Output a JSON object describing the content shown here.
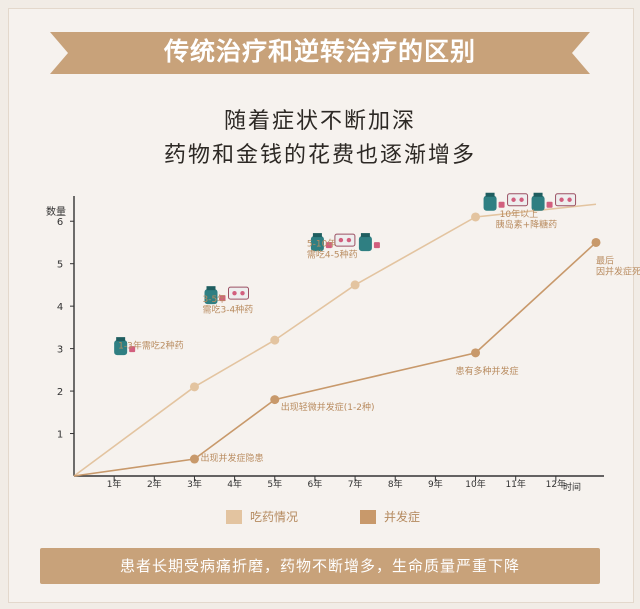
{
  "title": "传统治疗和逆转治疗的区别",
  "subtitle_lines": [
    "随着症状不断加深",
    "药物和金钱的花费也逐渐增多"
  ],
  "footer": "患者长期受病痛折磨，药物不断增多，生命质量严重下降",
  "colors": {
    "accent": "#c8a27a",
    "medication_line": "#e3c4a0",
    "complication_line": "#c8996b",
    "label_text": "#b98c60",
    "axis": "#333333"
  },
  "chart_data": {
    "type": "line",
    "title": "",
    "xlabel": "时间",
    "ylabel": "数量",
    "categories": [
      "1年",
      "2年",
      "3年",
      "4年",
      "5年",
      "6年",
      "7年",
      "8年",
      "9年",
      "10年",
      "11年",
      "12年"
    ],
    "yticks": [
      "1",
      "2",
      "3",
      "4",
      "5",
      "6"
    ],
    "xlim": [
      0,
      13
    ],
    "ylim": [
      0,
      6.5
    ],
    "grid": false,
    "legend_position": "bottom",
    "series": [
      {
        "name": "吃药情况",
        "x": [
          0,
          3,
          5,
          7,
          10,
          13
        ],
        "y": [
          0,
          2.1,
          3.2,
          4.5,
          6.1,
          6.4
        ]
      },
      {
        "name": "并发症",
        "x": [
          0,
          3,
          5,
          10,
          13
        ],
        "y": [
          0,
          0.4,
          1.8,
          2.9,
          5.5
        ]
      }
    ],
    "annotations": [
      {
        "text": "1-3年需吃2种药",
        "x": 1.1,
        "y": 3.0,
        "series": 0
      },
      {
        "text": "3-5年",
        "x": 3.2,
        "y": 4.1,
        "series": 0
      },
      {
        "text": "需吃3-4种药",
        "x": 3.2,
        "y": 3.85,
        "series": 0
      },
      {
        "text": "5-10年",
        "x": 5.8,
        "y": 5.4,
        "series": 0
      },
      {
        "text": "需吃4-5种药",
        "x": 5.8,
        "y": 5.15,
        "series": 0
      },
      {
        "text": "10年以上",
        "x": 10.6,
        "y": 6.1,
        "series": 0
      },
      {
        "text": "胰岛素+降糖药",
        "x": 10.5,
        "y": 5.85,
        "series": 0
      },
      {
        "text": "出现并发症隐患",
        "x": 3.15,
        "y": 0.35,
        "series": 1
      },
      {
        "text": "出现轻微并发症(1-2种)",
        "x": 5.15,
        "y": 1.55,
        "series": 1
      },
      {
        "text": "患有多种并发症",
        "x": 9.5,
        "y": 2.4,
        "series": 1
      },
      {
        "text": "最后",
        "x": 13.0,
        "y": 5.0,
        "series": 1
      },
      {
        "text": "因并发症死亡",
        "x": 13.0,
        "y": 4.75,
        "series": 1
      }
    ],
    "pill_icons": [
      {
        "x": 1.0,
        "y": 3.2,
        "count": 1
      },
      {
        "x": 3.25,
        "y": 4.4,
        "count": 2
      },
      {
        "x": 5.9,
        "y": 5.65,
        "count": 3
      },
      {
        "x": 10.2,
        "y": 6.6,
        "count": 4
      }
    ]
  }
}
